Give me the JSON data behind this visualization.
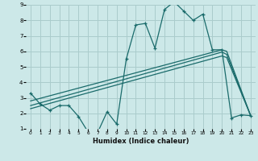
{
  "xlabel": "Humidex (Indice chaleur)",
  "bg_color": "#cce8e8",
  "grid_color": "#aacccc",
  "line_color": "#1a6b6b",
  "xlim": [
    -0.5,
    23.5
  ],
  "ylim": [
    1,
    9
  ],
  "xticks": [
    0,
    1,
    2,
    3,
    4,
    5,
    6,
    7,
    8,
    9,
    10,
    11,
    12,
    13,
    14,
    15,
    16,
    17,
    18,
    19,
    20,
    21,
    22,
    23
  ],
  "yticks": [
    1,
    2,
    3,
    4,
    5,
    6,
    7,
    8,
    9
  ],
  "curve1_x": [
    0,
    1,
    2,
    3,
    4,
    5,
    6,
    7,
    8,
    9,
    10,
    11,
    12,
    13,
    14,
    15,
    16,
    17,
    18,
    19,
    20,
    21,
    22,
    23
  ],
  "curve1_y": [
    3.3,
    2.6,
    2.2,
    2.5,
    2.5,
    1.8,
    0.8,
    0.75,
    2.1,
    1.3,
    5.5,
    7.7,
    7.8,
    6.2,
    8.7,
    9.2,
    8.6,
    8.0,
    8.4,
    6.1,
    6.1,
    1.7,
    1.9,
    1.85
  ],
  "curve2_x": [
    0,
    20,
    20.5,
    23
  ],
  "curve2_y": [
    2.8,
    6.1,
    6.0,
    1.85
  ],
  "curve3_x": [
    0,
    20,
    20.5,
    23
  ],
  "curve3_y": [
    2.5,
    5.95,
    5.8,
    1.85
  ],
  "curve4_x": [
    0,
    20,
    20.5,
    23
  ],
  "curve4_y": [
    2.3,
    5.7,
    5.6,
    1.85
  ]
}
